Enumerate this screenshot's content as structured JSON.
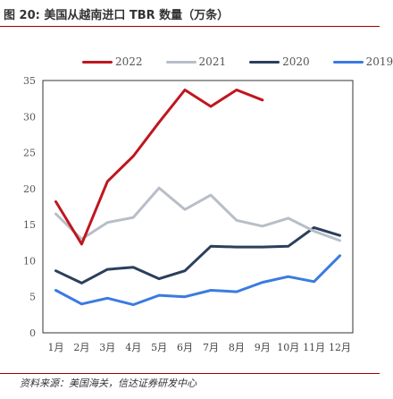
{
  "figure": {
    "title": "图 20:  美国从越南进口 TBR 数量（万条）",
    "source": "资料来源：美国海关，信达证券研发中心"
  },
  "chart_data": {
    "type": "line",
    "title": "美国从越南进口 TBR 数量（万条）",
    "xlabel": "",
    "ylabel": "",
    "categories": [
      "1月",
      "2月",
      "3月",
      "4月",
      "5月",
      "6月",
      "7月",
      "8月",
      "9月",
      "10月",
      "11月",
      "12月"
    ],
    "ylim": [
      0,
      35
    ],
    "yticks": [
      0,
      5,
      10,
      15,
      20,
      25,
      30,
      35
    ],
    "grid": false,
    "legend_position": "top",
    "series": [
      {
        "name": "2022",
        "color": "#c0161f",
        "values": [
          18.2,
          12.3,
          21.0,
          24.5,
          29.2,
          33.7,
          31.4,
          33.7,
          32.3,
          null,
          null,
          null
        ]
      },
      {
        "name": "2021",
        "color": "#b8bec8",
        "values": [
          16.5,
          13.0,
          15.3,
          16.0,
          20.1,
          17.1,
          19.1,
          15.6,
          14.8,
          15.9,
          14.1,
          12.8
        ]
      },
      {
        "name": "2020",
        "color": "#2b3f5c",
        "values": [
          8.6,
          6.9,
          8.8,
          9.1,
          7.5,
          8.6,
          12.0,
          11.9,
          11.9,
          12.0,
          14.6,
          13.5
        ]
      },
      {
        "name": "2019",
        "color": "#3a7be0",
        "values": [
          5.9,
          4.0,
          4.8,
          3.9,
          5.2,
          5.0,
          5.9,
          5.7,
          7.0,
          7.8,
          7.1,
          10.7
        ]
      }
    ]
  }
}
